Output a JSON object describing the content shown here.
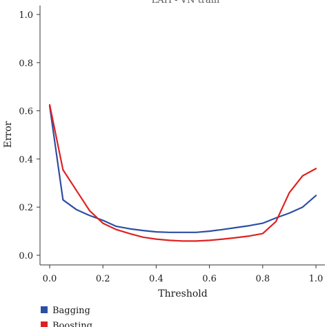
{
  "chart_data": {
    "type": "line",
    "title": "LAH - VN train",
    "xlabel": "Threshold",
    "ylabel": "Error",
    "xlim": [
      0.0,
      1.0
    ],
    "ylim": [
      0.0,
      1.0
    ],
    "xticks": [
      "0.0",
      "0.2",
      "0.4",
      "0.6",
      "0.8",
      "1.0"
    ],
    "yticks": [
      "0.0",
      "0.2",
      "0.4",
      "0.6",
      "0.8",
      "1.0"
    ],
    "grid": false,
    "legend_position": "bottom-left",
    "series": [
      {
        "name": "Bagging",
        "color": "#2c4ea3",
        "x": [
          0.0,
          0.05,
          0.1,
          0.15,
          0.2,
          0.25,
          0.3,
          0.35,
          0.4,
          0.45,
          0.5,
          0.55,
          0.6,
          0.65,
          0.7,
          0.75,
          0.8,
          0.85,
          0.9,
          0.95,
          1.0
        ],
        "values": [
          0.62,
          0.23,
          0.19,
          0.165,
          0.145,
          0.12,
          0.11,
          0.103,
          0.097,
          0.095,
          0.095,
          0.095,
          0.1,
          0.107,
          0.115,
          0.123,
          0.133,
          0.155,
          0.175,
          0.2,
          0.248
        ]
      },
      {
        "name": "Boosting",
        "color": "#e02020",
        "x": [
          0.0,
          0.05,
          0.1,
          0.15,
          0.2,
          0.25,
          0.3,
          0.35,
          0.4,
          0.45,
          0.5,
          0.55,
          0.6,
          0.65,
          0.7,
          0.75,
          0.8,
          0.85,
          0.9,
          0.95,
          1.0
        ],
        "values": [
          0.625,
          0.355,
          0.27,
          0.185,
          0.133,
          0.107,
          0.09,
          0.075,
          0.067,
          0.062,
          0.059,
          0.059,
          0.062,
          0.067,
          0.073,
          0.08,
          0.09,
          0.14,
          0.26,
          0.33,
          0.36
        ]
      }
    ]
  }
}
